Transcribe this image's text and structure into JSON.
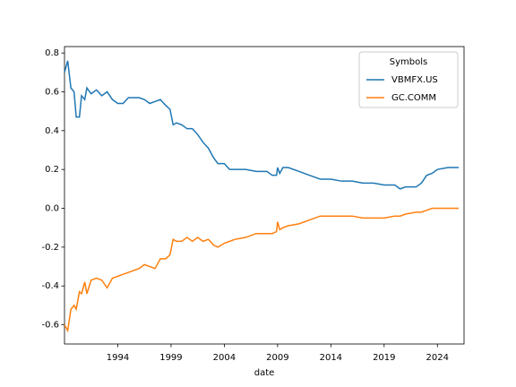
{
  "chart_data": {
    "type": "line",
    "xlabel": "date",
    "legend_title": "Symbols",
    "legend_loc": "upper right",
    "x": [
      1989.0,
      1989.3,
      1989.6,
      1989.9,
      1990.1,
      1990.4,
      1990.6,
      1990.9,
      1991.1,
      1991.5,
      1992.0,
      1992.5,
      1993.0,
      1993.5,
      1994.0,
      1994.5,
      1995.0,
      1996.0,
      1996.5,
      1997.0,
      1997.5,
      1998.0,
      1998.5,
      1998.9,
      1999.2,
      1999.5,
      2000.0,
      2000.5,
      2001.0,
      2001.5,
      2002.0,
      2002.5,
      2003.0,
      2003.4,
      2004.0,
      2004.5,
      2005.0,
      2006.0,
      2007.0,
      2008.0,
      2008.5,
      2008.9,
      2009.0,
      2009.2,
      2009.5,
      2010.0,
      2011.0,
      2012.0,
      2013.0,
      2014.0,
      2015.0,
      2016.0,
      2017.0,
      2018.0,
      2019.0,
      2020.0,
      2020.5,
      2021.0,
      2022.0,
      2022.5,
      2023.0,
      2023.5,
      2024.0,
      2025.0,
      2026.0
    ],
    "series": [
      {
        "name": "VBMFX.US",
        "color": "#1f77b4",
        "values": [
          0.7,
          0.76,
          0.62,
          0.6,
          0.47,
          0.47,
          0.58,
          0.56,
          0.62,
          0.59,
          0.61,
          0.58,
          0.6,
          0.56,
          0.54,
          0.54,
          0.57,
          0.57,
          0.56,
          0.54,
          0.55,
          0.56,
          0.53,
          0.51,
          0.43,
          0.44,
          0.43,
          0.41,
          0.41,
          0.38,
          0.34,
          0.31,
          0.26,
          0.23,
          0.23,
          0.2,
          0.2,
          0.2,
          0.19,
          0.19,
          0.17,
          0.17,
          0.21,
          0.18,
          0.21,
          0.21,
          0.19,
          0.17,
          0.15,
          0.15,
          0.14,
          0.14,
          0.13,
          0.13,
          0.12,
          0.12,
          0.1,
          0.11,
          0.11,
          0.13,
          0.17,
          0.18,
          0.2,
          0.21,
          0.21
        ]
      },
      {
        "name": "GC.COMM",
        "color": "#ff7f0e",
        "values": [
          -0.6,
          -0.63,
          -0.52,
          -0.5,
          -0.52,
          -0.43,
          -0.44,
          -0.38,
          -0.44,
          -0.37,
          -0.36,
          -0.37,
          -0.41,
          -0.36,
          -0.35,
          -0.34,
          -0.33,
          -0.31,
          -0.29,
          -0.3,
          -0.31,
          -0.26,
          -0.26,
          -0.24,
          -0.16,
          -0.17,
          -0.17,
          -0.15,
          -0.17,
          -0.15,
          -0.17,
          -0.16,
          -0.19,
          -0.2,
          -0.18,
          -0.17,
          -0.16,
          -0.15,
          -0.13,
          -0.13,
          -0.13,
          -0.12,
          -0.07,
          -0.11,
          -0.1,
          -0.09,
          -0.08,
          -0.06,
          -0.04,
          -0.04,
          -0.04,
          -0.04,
          -0.05,
          -0.05,
          -0.05,
          -0.04,
          -0.04,
          -0.03,
          -0.02,
          -0.02,
          -0.01,
          0.0,
          0.0,
          0.0,
          0.0
        ]
      }
    ],
    "xlim": [
      1989.0,
      2026.5
    ],
    "xticks": [
      1994,
      1999,
      2004,
      2009,
      2014,
      2019,
      2024
    ],
    "ylim": [
      -0.699,
      0.833
    ],
    "yticks": [
      -0.6,
      -0.4,
      -0.2,
      {
        "value": 0,
        "label": "0.0"
      },
      0.2,
      0.4,
      0.6,
      0.8
    ]
  }
}
